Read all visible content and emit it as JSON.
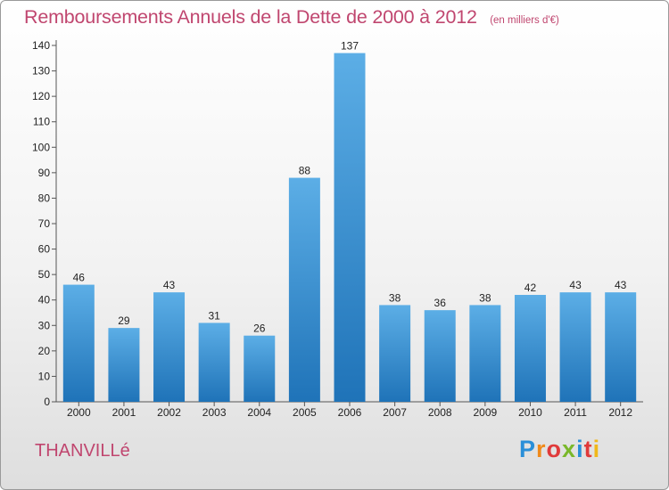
{
  "title": "Remboursements Annuels de la Dette de 2000 à 2012",
  "subtitle": "(en milliers d'€)",
  "commune": "THANVILLé",
  "logo": {
    "letters": [
      "P",
      "r",
      "o",
      "x",
      "i",
      "t",
      "i"
    ],
    "colors": [
      "#2a8fd8",
      "#f08a1a",
      "#e03a3a",
      "#7ab82a",
      "#2a8fd8",
      "#e03a3a",
      "#f0b81a"
    ]
  },
  "colors": {
    "bar_light": "#5caee6",
    "bar_dark": "#1f73b8",
    "axis": "#555555",
    "text": "#222222",
    "accent": "#c0466f"
  },
  "chart_data": {
    "type": "bar",
    "categories": [
      "2000",
      "2001",
      "2002",
      "2003",
      "2004",
      "2005",
      "2006",
      "2007",
      "2008",
      "2009",
      "2010",
      "2011",
      "2012"
    ],
    "values": [
      46,
      29,
      43,
      31,
      26,
      88,
      137,
      38,
      36,
      38,
      42,
      43,
      43
    ],
    "ylim": [
      0,
      140
    ],
    "yticks": [
      0,
      10,
      20,
      30,
      40,
      50,
      60,
      70,
      80,
      90,
      100,
      110,
      120,
      130,
      140
    ],
    "grid": false,
    "data_labels": true
  }
}
